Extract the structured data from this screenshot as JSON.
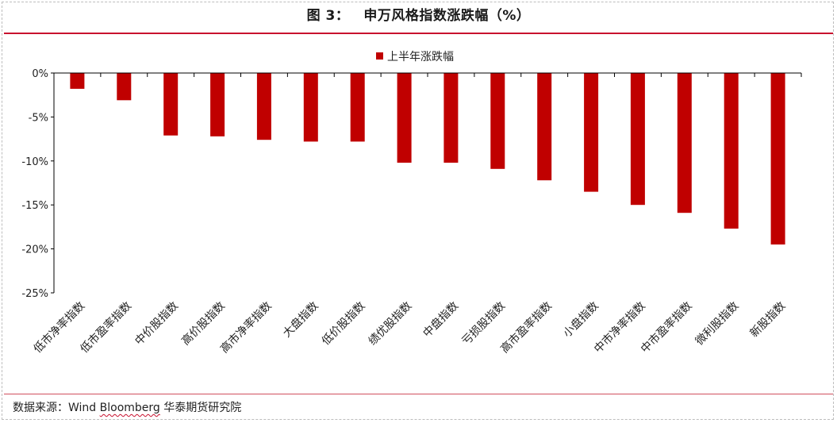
{
  "header": {
    "figure_no": "图 3：",
    "title": "申万风格指数涨跌幅（%）"
  },
  "footer": {
    "source_prefix": "数据来源：Wind ",
    "source_wavy": "Bloomberg",
    "source_suffix": "  华泰期货研究院"
  },
  "colors": {
    "bar": "#c00000",
    "rule": "#c8102e",
    "axis": "#000000"
  },
  "chart_data": {
    "type": "bar",
    "categories": [
      "低市净率指数",
      "低市盈率指数",
      "中价股指数",
      "高价股指数",
      "高市净率指数",
      "大盘指数",
      "低价股指数",
      "绩优股指数",
      "中盘指数",
      "亏损股指数",
      "高市盈率指数",
      "小盘指数",
      "中市净率指数",
      "中市盈率指数",
      "微利股指数",
      "新股指数"
    ],
    "series": [
      {
        "name": "上半年涨跌幅",
        "values": [
          -1.8,
          -3.1,
          -7.1,
          -7.2,
          -7.6,
          -7.8,
          -7.8,
          -10.2,
          -10.2,
          -10.9,
          -12.2,
          -13.5,
          -15.0,
          -15.9,
          -17.7,
          -19.5
        ]
      }
    ],
    "yticks": [
      "0%",
      "-5%",
      "-10%",
      "-15%",
      "-20%",
      "-25%"
    ],
    "ylim": [
      -25,
      0
    ],
    "legend_position": "top-center",
    "grid": false
  }
}
